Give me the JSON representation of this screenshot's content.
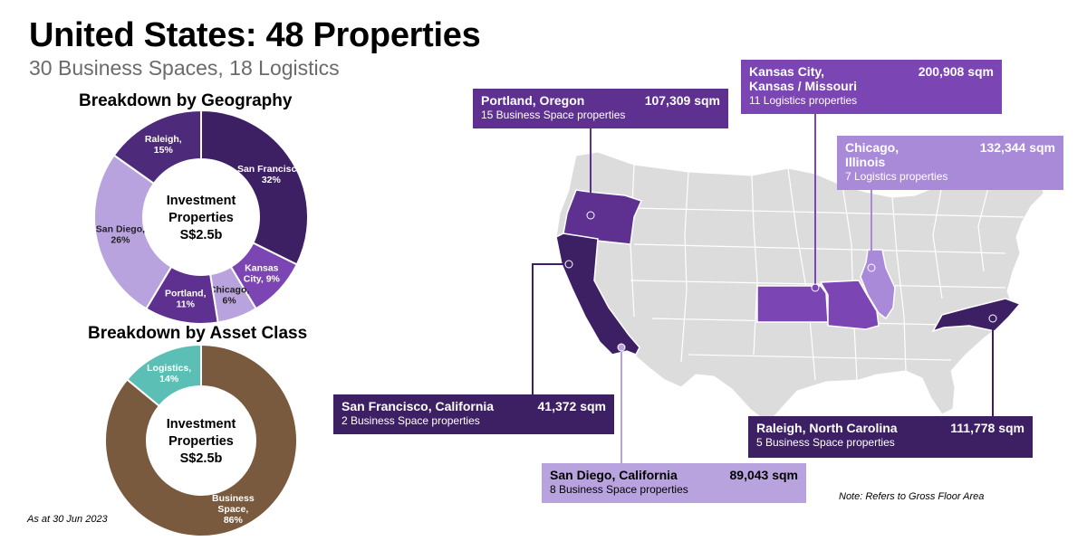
{
  "header": {
    "title": "United States: 48 Properties",
    "subtitle": "30 Business Spaces, 18 Logistics"
  },
  "footer": {
    "as_at": "As at 30 Jun 2023",
    "note": "Note: Refers to Gross Floor Area"
  },
  "colors": {
    "dark_purple": "#3d2063",
    "mid_purple": "#5e3190",
    "bright_purple": "#7b45b4",
    "light_purple": "#a98ad8",
    "lavender": "#b8a3df",
    "teal": "#5bbfb5",
    "brown": "#7a5a3e",
    "map_grey": "#dcdcdc"
  },
  "chart_data": [
    {
      "type": "pie",
      "title": "Breakdown by Geography",
      "center_label": [
        "Investment",
        "Properties",
        "S$2.5b"
      ],
      "slices": [
        {
          "label": [
            "San Francisco,",
            "32%"
          ],
          "value": 32,
          "color": "#3d2063"
        },
        {
          "label": [
            "Kansas",
            "City, 9%"
          ],
          "value": 9,
          "color": "#7b45b4"
        },
        {
          "label": [
            "Chicago,",
            "6%"
          ],
          "value": 6,
          "color": "#b8a3df"
        },
        {
          "label": [
            "Portland,",
            "11%"
          ],
          "value": 11,
          "color": "#5e3190"
        },
        {
          "label": [
            "San Diego,",
            "26%"
          ],
          "value": 26,
          "color": "#b8a3df"
        },
        {
          "label": [
            "Raleigh,",
            "15%"
          ],
          "value": 15,
          "color": "#4d2a7a"
        }
      ]
    },
    {
      "type": "pie",
      "title": "Breakdown by Asset Class",
      "center_label": [
        "Investment",
        "Properties",
        "S$2.5b"
      ],
      "slices": [
        {
          "label": [
            "Business",
            "Space,",
            "86%"
          ],
          "value": 86,
          "color": "#7a5a3e"
        },
        {
          "label": [
            "Logistics,",
            "14%"
          ],
          "value": 14,
          "color": "#5bbfb5"
        }
      ]
    }
  ],
  "map": {
    "locations": [
      {
        "id": "portland",
        "name": "Portland, Oregon",
        "area": "107,309 sqm",
        "detail": "15 Business Space properties",
        "color": "#5e3190"
      },
      {
        "id": "kansas",
        "name": "Kansas City,\nKansas / Missouri",
        "area": "200,908 sqm",
        "detail": "11 Logistics properties",
        "color": "#7b45b4"
      },
      {
        "id": "chicago",
        "name": "Chicago,\nIllinois",
        "area": "132,344 sqm",
        "detail": "7 Logistics properties",
        "color": "#a98ad8"
      },
      {
        "id": "sanfrancisco",
        "name": "San Francisco, California",
        "area": "41,372 sqm",
        "detail": "2 Business Space properties",
        "color": "#3d2063"
      },
      {
        "id": "sandiego",
        "name": "San Diego, California",
        "area": "89,043 sqm",
        "detail": "8 Business Space properties",
        "color": "#b8a3df"
      },
      {
        "id": "raleigh",
        "name": "Raleigh, North Carolina",
        "area": "111,778 sqm",
        "detail": "5 Business Space properties",
        "color": "#3d2063"
      }
    ]
  }
}
